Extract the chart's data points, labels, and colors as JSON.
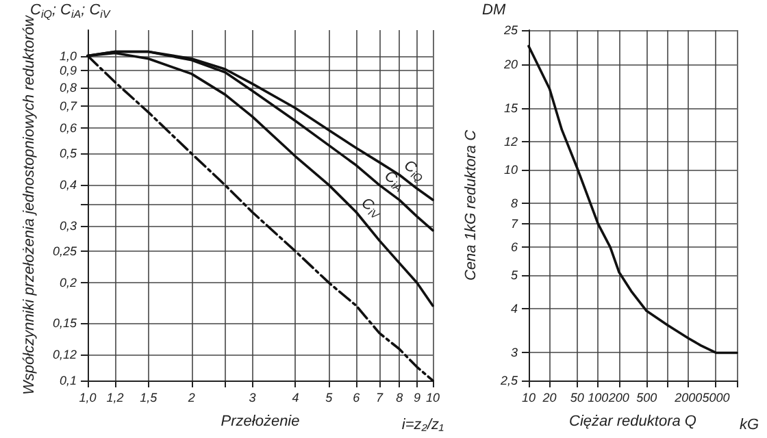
{
  "chart_data": [
    {
      "type": "line",
      "xlabel": "Przełożenie",
      "ylabel": "Współczynniki przełożenia jednostopniowych reduktorów",
      "annotations": [
        "C$_{iQ}$; C$_{iA}$; C$_{iV}$",
        "i=z₂/z₁"
      ],
      "log": "xy",
      "grid": true,
      "legend": false,
      "marker": "none",
      "xlim": [
        1,
        10
      ],
      "ylim": [
        0.1,
        1.2
      ],
      "xticks": [
        {
          "value": 1,
          "label": "1,0"
        },
        {
          "value": 1.2,
          "label": "1,2"
        },
        {
          "value": 1.5,
          "label": "1,5"
        },
        2,
        {
          "value": 2.5,
          "label": null
        },
        3,
        4,
        5,
        6,
        7,
        8,
        9,
        10
      ],
      "yticks": [
        {
          "value": 0.1,
          "label": "0,1"
        },
        {
          "value": 0.12,
          "label": "0,12"
        },
        {
          "value": 0.15,
          "label": "0,15"
        },
        {
          "value": 0.2,
          "label": "0,2"
        },
        {
          "value": 0.25,
          "label": "0,25"
        },
        {
          "value": 0.3,
          "label": "0,3"
        },
        {
          "value": 0.35,
          "label": null
        },
        {
          "value": 0.4,
          "label": "0,4"
        },
        {
          "value": 0.5,
          "label": "0,5"
        },
        {
          "value": 0.6,
          "label": "0,6"
        },
        {
          "value": 0.7,
          "label": "0,7"
        },
        {
          "value": 0.8,
          "label": "0,8"
        },
        {
          "value": 0.9,
          "label": "0,9"
        },
        {
          "value": 1,
          "label": "1,0"
        }
      ],
      "x": [
        1,
        1.2,
        1.5,
        2,
        2.5,
        3,
        4,
        5,
        6,
        7,
        8,
        9,
        10
      ],
      "series": [
        {
          "name": "C$_{iQ}$",
          "color": "#111111",
          "line_style": "solid",
          "values": [
            1.0,
            1.03,
            1.03,
            0.98,
            0.91,
            0.82,
            0.69,
            0.59,
            0.52,
            0.47,
            0.43,
            0.39,
            0.36
          ]
        },
        {
          "name": "C$_{iA}$",
          "color": "#111111",
          "line_style": "solid",
          "values": [
            1.0,
            1.03,
            1.03,
            0.97,
            0.89,
            0.78,
            0.63,
            0.53,
            0.46,
            0.4,
            0.36,
            0.32,
            0.29
          ]
        },
        {
          "name": "C$_{iV}$",
          "color": "#111111",
          "line_style": "solid",
          "values": [
            1.0,
            1.02,
            0.98,
            0.88,
            0.76,
            0.65,
            0.49,
            0.4,
            0.33,
            0.27,
            0.23,
            0.2,
            0.17
          ]
        },
        {
          "color": "#111111",
          "line_style": "dashed",
          "values": [
            1.0,
            0.83,
            0.67,
            0.5,
            0.4,
            0.33,
            0.25,
            0.2,
            0.17,
            0.14,
            0.125,
            0.11,
            0.1
          ]
        }
      ]
    },
    {
      "type": "line",
      "xlabel": "Ciężar reduktora Q",
      "ylabel": "Cena 1kG reduktora C",
      "annotations": [
        "DM",
        "kG"
      ],
      "log": "xy",
      "grid": true,
      "legend": false,
      "marker": "none",
      "xlim": [
        10,
        10000
      ],
      "ylim": [
        2.5,
        25
      ],
      "xticks": [
        10,
        20,
        50,
        100,
        200,
        500,
        {
          "value": 1000,
          "label": null
        },
        2000,
        5000,
        {
          "value": 10000,
          "label": null
        }
      ],
      "yticks": [
        {
          "value": 2.5,
          "label": "2,5"
        },
        3,
        4,
        5,
        6,
        7,
        8,
        10,
        12,
        15,
        20,
        25
      ],
      "x": [
        10,
        20,
        30,
        50,
        100,
        150,
        200,
        300,
        500,
        1000,
        2000,
        3000,
        5000,
        10000
      ],
      "series": [
        {
          "color": "#111111",
          "line_style": "solid",
          "values": [
            22.5,
            17,
            13,
            10.1,
            7,
            6,
            5.1,
            4.5,
            3.95,
            3.6,
            3.3,
            3.15,
            3.0,
            3.0
          ]
        }
      ]
    }
  ]
}
